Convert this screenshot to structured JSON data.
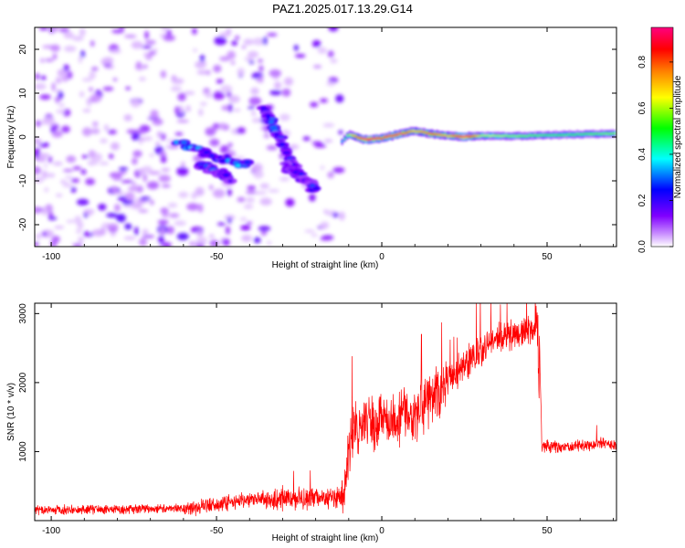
{
  "title": "PAZ1.2025.017.13.29.G14",
  "chart_data": [
    {
      "type": "heatmap",
      "xlabel": "Height of straight line (km)",
      "ylabel": "Frequency (Hz)",
      "xlim": [
        -105,
        71
      ],
      "ylim": [
        -25,
        25
      ],
      "xticks": [
        -100,
        -50,
        0,
        50
      ],
      "yticks": [
        -20,
        -10,
        0,
        10,
        20
      ],
      "colorbar": {
        "label": "Normalized spectral amplitude",
        "range": [
          0,
          0.95
        ],
        "ticks": [
          0.0,
          0.2,
          0.4,
          0.6,
          0.8
        ],
        "colormap": [
          "#ffffff",
          "#8000ff",
          "#0000ff",
          "#00ffff",
          "#00ff00",
          "#ffff00",
          "#ff8000",
          "#ff0000",
          "#ff0080"
        ]
      },
      "noise_region_x": [
        -105,
        -12
      ],
      "signal_track": {
        "x": [
          -12,
          -10,
          -5,
          0,
          5,
          10,
          15,
          20,
          25,
          30,
          40,
          50,
          60,
          71
        ],
        "y": [
          -1.0,
          0.6,
          -0.6,
          -0.3,
          0.6,
          1.4,
          0.7,
          0.3,
          0.1,
          0.3,
          0.2,
          0.4,
          0.6,
          0.8
        ],
        "peak_amplitude": [
          0.2,
          0.5,
          0.9,
          0.8,
          0.85,
          0.6,
          0.75,
          0.6,
          0.95,
          0.5,
          0.45,
          0.4,
          0.4,
          0.45
        ]
      },
      "features": [
        {
          "x": [
            -62,
            -40
          ],
          "y": [
            -1.5,
            -6.5
          ],
          "amplitude": 0.4
        },
        {
          "x": [
            -55,
            -46
          ],
          "y": [
            -6.0,
            -9.5
          ],
          "amplitude": 0.35
        },
        {
          "x": [
            -36,
            -25
          ],
          "y": [
            6.5,
            -8.5
          ],
          "amplitude": 0.35
        },
        {
          "x": [
            -29,
            -20
          ],
          "y": [
            -6.5,
            -12.0
          ],
          "amplitude": 0.3
        }
      ]
    },
    {
      "type": "line",
      "xlabel": "Height of straight line (km)",
      "ylabel": "SNR (10 * v/v)",
      "xlim": [
        -105,
        71
      ],
      "ylim": [
        0,
        3150
      ],
      "xticks": [
        -100,
        -50,
        0,
        50
      ],
      "yticks": [
        1000,
        2000,
        3000
      ],
      "color": "#ff0000",
      "series": [
        {
          "x": [
            -105,
            -90,
            -80,
            -70,
            -60,
            -50,
            -40,
            -30,
            -20,
            -15,
            -12,
            -10,
            -9,
            -8,
            -6,
            -4,
            -2,
            0,
            2,
            5,
            8,
            10,
            12,
            15,
            18,
            20,
            25,
            30,
            33,
            35,
            40,
            45,
            47,
            48,
            48.5,
            50,
            55,
            60,
            65,
            71
          ],
          "y": [
            150,
            160,
            160,
            170,
            180,
            230,
            300,
            320,
            340,
            330,
            300,
            900,
            1250,
            1400,
            1300,
            1450,
            1350,
            1500,
            1450,
            1450,
            1600,
            1450,
            1700,
            1800,
            1900,
            2000,
            2250,
            2450,
            2600,
            2650,
            2700,
            2750,
            2800,
            1100,
            1050,
            1080,
            1060,
            1080,
            1120,
            1100
          ]
        }
      ],
      "spikes": [
        {
          "x": -12,
          "y": 580
        },
        {
          "x": -9,
          "y": 2380
        },
        {
          "x": 12,
          "y": 2700
        },
        {
          "x": 33,
          "y": 3150
        },
        {
          "x": 65,
          "y": 1380
        }
      ]
    }
  ]
}
